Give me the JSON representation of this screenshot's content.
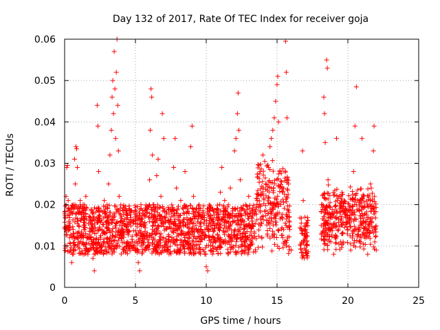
{
  "chart_data": {
    "type": "scatter",
    "title": "Day 132 of 2017, Rate Of TEC Index for receiver goja",
    "xlabel": "GPS time / hours",
    "ylabel": "ROTI / TECUs",
    "xlim": [
      0,
      25
    ],
    "ylim": [
      0,
      0.06
    ],
    "x_ticks": [
      0,
      5,
      10,
      15,
      20,
      25
    ],
    "x_tick_labels": [
      "0",
      "5",
      "10",
      "15",
      "20",
      "25"
    ],
    "y_ticks": [
      0,
      0.01,
      0.02,
      0.03,
      0.04,
      0.05,
      0.06
    ],
    "y_tick_labels": [
      "0",
      "0.01",
      "0.02",
      "0.03",
      "0.04",
      "0.05",
      "0.06"
    ],
    "grid": true,
    "marker": "+",
    "series": [
      {
        "name": "ROTI",
        "color": "#ff0000",
        "points": [
          [
            0.05,
            0.017
          ],
          [
            0.1,
            0.022
          ],
          [
            0.15,
            0.029
          ],
          [
            0.2,
            0.0295
          ],
          [
            0.25,
            0.021
          ],
          [
            0.3,
            0.015
          ],
          [
            0.35,
            0.012
          ],
          [
            0.4,
            0.009
          ],
          [
            0.45,
            0.018
          ],
          [
            0.5,
            0.006
          ],
          [
            0.55,
            0.008
          ],
          [
            0.6,
            0.014
          ],
          [
            0.65,
            0.02
          ],
          [
            0.7,
            0.031
          ],
          [
            0.75,
            0.025
          ],
          [
            0.8,
            0.034
          ],
          [
            0.85,
            0.0335
          ],
          [
            0.9,
            0.029
          ],
          [
            0.95,
            0.016
          ],
          [
            1.0,
            0.011
          ],
          [
            1.05,
            0.019
          ],
          [
            1.1,
            0.021
          ],
          [
            1.2,
            0.013
          ],
          [
            1.3,
            0.008
          ],
          [
            1.4,
            0.015
          ],
          [
            1.5,
            0.022
          ],
          [
            1.6,
            0.012
          ],
          [
            1.7,
            0.009
          ],
          [
            1.8,
            0.017
          ],
          [
            1.9,
            0.014
          ],
          [
            2.0,
            0.007
          ],
          [
            2.1,
            0.004
          ],
          [
            2.2,
            0.011
          ],
          [
            2.25,
            0.019
          ],
          [
            2.3,
            0.044
          ],
          [
            2.35,
            0.039
          ],
          [
            2.4,
            0.028
          ],
          [
            2.5,
            0.016
          ],
          [
            2.6,
            0.009
          ],
          [
            2.7,
            0.013
          ],
          [
            2.8,
            0.021
          ],
          [
            2.9,
            0.018
          ],
          [
            3.0,
            0.012
          ],
          [
            3.1,
            0.025
          ],
          [
            3.2,
            0.032
          ],
          [
            3.3,
            0.038
          ],
          [
            3.35,
            0.046
          ],
          [
            3.4,
            0.05
          ],
          [
            3.45,
            0.042
          ],
          [
            3.5,
            0.057
          ],
          [
            3.55,
            0.048
          ],
          [
            3.6,
            0.036
          ],
          [
            3.65,
            0.052
          ],
          [
            3.7,
            0.06
          ],
          [
            3.75,
            0.044
          ],
          [
            3.8,
            0.033
          ],
          [
            3.85,
            0.022
          ],
          [
            3.9,
            0.015
          ],
          [
            4.0,
            0.012
          ],
          [
            4.2,
            0.009
          ],
          [
            4.4,
            0.014
          ],
          [
            4.6,
            0.018
          ],
          [
            4.8,
            0.011
          ],
          [
            5.0,
            0.009
          ],
          [
            5.2,
            0.006
          ],
          [
            5.3,
            0.004
          ],
          [
            5.4,
            0.01
          ],
          [
            5.6,
            0.013
          ],
          [
            5.8,
            0.018
          ],
          [
            6.0,
            0.026
          ],
          [
            6.05,
            0.038
          ],
          [
            6.1,
            0.048
          ],
          [
            6.15,
            0.046
          ],
          [
            6.2,
            0.032
          ],
          [
            6.3,
            0.02
          ],
          [
            6.5,
            0.027
          ],
          [
            6.6,
            0.031
          ],
          [
            6.8,
            0.022
          ],
          [
            6.9,
            0.042
          ],
          [
            7.0,
            0.036
          ],
          [
            7.1,
            0.016
          ],
          [
            7.3,
            0.011
          ],
          [
            7.5,
            0.016
          ],
          [
            7.7,
            0.029
          ],
          [
            7.8,
            0.036
          ],
          [
            7.9,
            0.024
          ],
          [
            8.0,
            0.013
          ],
          [
            8.2,
            0.021
          ],
          [
            8.4,
            0.015
          ],
          [
            8.5,
            0.028
          ],
          [
            8.6,
            0.018
          ],
          [
            8.8,
            0.012
          ],
          [
            8.9,
            0.034
          ],
          [
            9.0,
            0.039
          ],
          [
            9.1,
            0.022
          ],
          [
            9.3,
            0.014
          ],
          [
            9.5,
            0.019
          ],
          [
            9.7,
            0.013
          ],
          [
            9.9,
            0.008
          ],
          [
            10.0,
            0.005
          ],
          [
            10.1,
            0.004
          ],
          [
            10.3,
            0.009
          ],
          [
            10.5,
            0.012
          ],
          [
            10.7,
            0.018
          ],
          [
            10.9,
            0.014
          ],
          [
            11.0,
            0.023
          ],
          [
            11.1,
            0.029
          ],
          [
            11.3,
            0.021
          ],
          [
            11.5,
            0.017
          ],
          [
            11.7,
            0.024
          ],
          [
            11.9,
            0.016
          ],
          [
            12.0,
            0.033
          ],
          [
            12.1,
            0.036
          ],
          [
            12.2,
            0.042
          ],
          [
            12.25,
            0.047
          ],
          [
            12.3,
            0.038
          ],
          [
            12.4,
            0.026
          ],
          [
            12.6,
            0.019
          ],
          [
            12.8,
            0.015
          ],
          [
            13.0,
            0.022
          ],
          [
            13.2,
            0.017
          ],
          [
            13.4,
            0.013
          ],
          [
            13.6,
            0.021
          ],
          [
            13.8,
            0.028
          ],
          [
            14.0,
            0.032
          ],
          [
            14.2,
            0.025
          ],
          [
            14.4,
            0.029
          ],
          [
            14.5,
            0.034
          ],
          [
            14.6,
            0.036
          ],
          [
            14.7,
            0.038
          ],
          [
            14.8,
            0.041
          ],
          [
            14.9,
            0.045
          ],
          [
            15.0,
            0.049
          ],
          [
            15.05,
            0.051
          ],
          [
            15.1,
            0.04
          ],
          [
            15.2,
            0.028
          ],
          [
            15.3,
            0.017
          ],
          [
            15.4,
            0.012
          ],
          [
            15.6,
            0.0595
          ],
          [
            15.65,
            0.052
          ],
          [
            15.7,
            0.041
          ],
          [
            15.8,
            0.025
          ],
          [
            15.9,
            0.014
          ],
          [
            16.0,
            0.009
          ],
          [
            16.8,
            0.033
          ],
          [
            16.85,
            0.021
          ],
          [
            16.9,
            0.014
          ],
          [
            17.0,
            0.009
          ],
          [
            17.1,
            0.011
          ],
          [
            18.2,
            0.02
          ],
          [
            18.3,
            0.046
          ],
          [
            18.35,
            0.042
          ],
          [
            18.4,
            0.035
          ],
          [
            18.5,
            0.055
          ],
          [
            18.55,
            0.053
          ],
          [
            18.6,
            0.026
          ],
          [
            18.7,
            0.017
          ],
          [
            18.8,
            0.011
          ],
          [
            19.0,
            0.008
          ],
          [
            19.2,
            0.036
          ],
          [
            19.4,
            0.022
          ],
          [
            19.6,
            0.013
          ],
          [
            19.8,
            0.019
          ],
          [
            20.0,
            0.014
          ],
          [
            20.2,
            0.009
          ],
          [
            20.4,
            0.028
          ],
          [
            20.5,
            0.039
          ],
          [
            20.6,
            0.0485
          ],
          [
            20.7,
            0.021
          ],
          [
            20.9,
            0.016
          ],
          [
            21.0,
            0.036
          ],
          [
            21.2,
            0.013
          ],
          [
            21.4,
            0.008
          ],
          [
            21.6,
            0.025
          ],
          [
            21.7,
            0.019
          ],
          [
            21.8,
            0.033
          ],
          [
            21.85,
            0.039
          ],
          [
            21.9,
            0.011
          ],
          [
            22.0,
            0.009
          ]
        ]
      }
    ]
  }
}
